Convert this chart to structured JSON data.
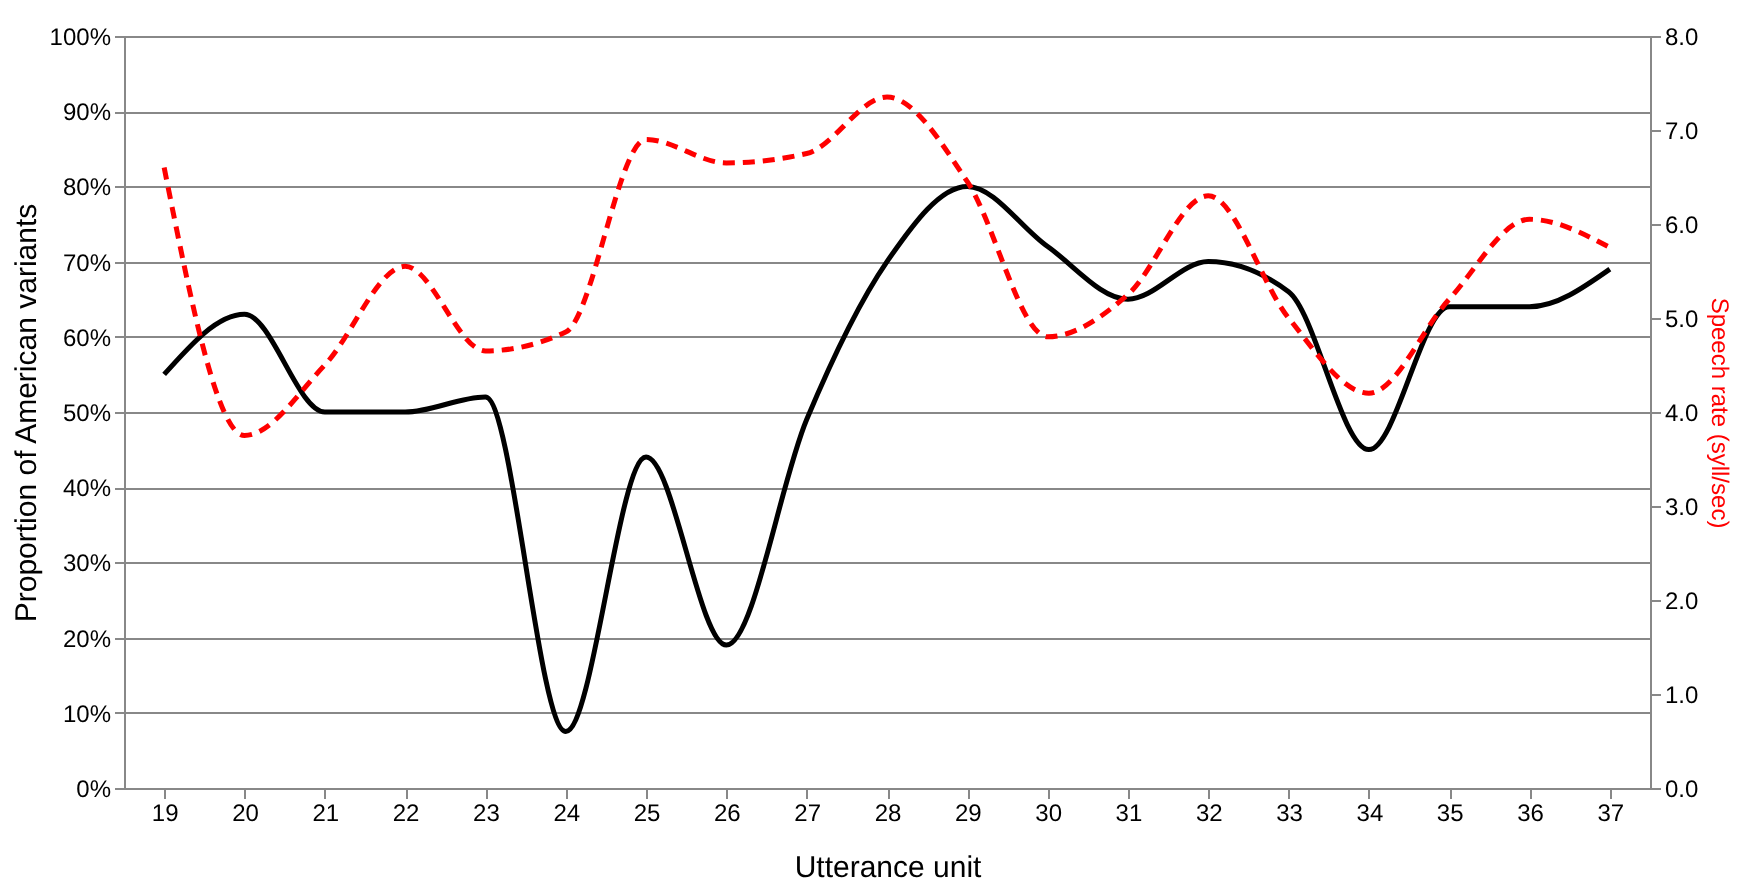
{
  "chart_data": {
    "type": "line",
    "xlabel": "Utterance unit",
    "ylabel": "Proportion of American variants",
    "y2label": "Speech rate (syll/sec)",
    "categories": [
      "19",
      "20",
      "21",
      "22",
      "23",
      "24",
      "25",
      "26",
      "27",
      "28",
      "29",
      "30",
      "31",
      "32",
      "33",
      "34",
      "35",
      "36",
      "37"
    ],
    "series": [
      {
        "type": "line",
        "color": "#000000",
        "line_style": "solid",
        "values": [
          55,
          63,
          50,
          50,
          52,
          7.5,
          44,
          19,
          49,
          70,
          80,
          72,
          65,
          70,
          66,
          45,
          64,
          64,
          69
        ]
      },
      {
        "type": "line",
        "color": "#ff0000",
        "line_style": "dashed",
        "axis": "y2",
        "values": [
          6.6,
          3.75,
          4.5,
          5.55,
          4.65,
          4.85,
          6.9,
          6.65,
          6.75,
          7.35,
          6.45,
          4.8,
          5.25,
          6.3,
          5.0,
          4.2,
          5.2,
          6.05,
          5.75
        ]
      }
    ],
    "ylim": [
      0,
      100
    ],
    "yticks": [
      {
        "value": 0,
        "label": "0%"
      },
      {
        "value": 10,
        "label": "10%"
      },
      {
        "value": 20,
        "label": "20%"
      },
      {
        "value": 30,
        "label": "30%"
      },
      {
        "value": 40,
        "label": "40%"
      },
      {
        "value": 50,
        "label": "50%"
      },
      {
        "value": 60,
        "label": "60%"
      },
      {
        "value": 70,
        "label": "70%"
      },
      {
        "value": 80,
        "label": "80%"
      },
      {
        "value": 90,
        "label": "90%"
      },
      {
        "value": 100,
        "label": "100%"
      }
    ],
    "y2lim": [
      0,
      8
    ],
    "y2ticks": [
      {
        "value": 0,
        "label": "0.0"
      },
      {
        "value": 1,
        "label": "1.0"
      },
      {
        "value": 2,
        "label": "2.0"
      },
      {
        "value": 3,
        "label": "3.0"
      },
      {
        "value": 4,
        "label": "4.0"
      },
      {
        "value": 5,
        "label": "5.0"
      },
      {
        "value": 6,
        "label": "6.0"
      },
      {
        "value": 7,
        "label": "7.0"
      },
      {
        "value": 8,
        "label": "8.0"
      }
    ],
    "grid": "y",
    "marker": "none"
  }
}
